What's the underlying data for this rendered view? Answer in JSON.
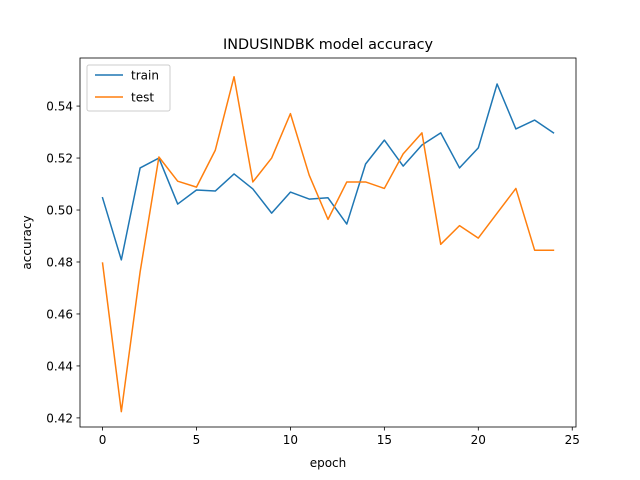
{
  "chart_data": {
    "type": "line",
    "title": "INDUSINDBK model accuracy",
    "xlabel": "epoch",
    "ylabel": "accuracy",
    "xlim": [
      -1.2,
      25.2
    ],
    "ylim": [
      0.4165,
      0.5585
    ],
    "xticks": [
      0,
      5,
      10,
      15,
      20,
      25
    ],
    "yticks": [
      0.42,
      0.44,
      0.46,
      0.48,
      0.5,
      0.52,
      0.54
    ],
    "ytick_labels": [
      "0.42",
      "0.44",
      "0.46",
      "0.48",
      "0.50",
      "0.52",
      "0.54"
    ],
    "x": [
      0,
      1,
      2,
      3,
      4,
      5,
      6,
      7,
      8,
      9,
      10,
      11,
      12,
      13,
      14,
      15,
      16,
      17,
      18,
      19,
      20,
      21,
      22,
      23,
      24
    ],
    "grid": false,
    "legend": "upper left",
    "series": [
      {
        "name": "train",
        "color": "#1f77b4",
        "values": [
          0.5047,
          0.4808,
          0.5162,
          0.52,
          0.5023,
          0.5077,
          0.5073,
          0.5139,
          0.5081,
          0.4988,
          0.5069,
          0.5042,
          0.5047,
          0.4946,
          0.5177,
          0.5269,
          0.5169,
          0.525,
          0.5297,
          0.5162,
          0.5239,
          0.5485,
          0.5312,
          0.5346,
          0.5297
        ]
      },
      {
        "name": "test",
        "color": "#ff7f0e",
        "values": [
          0.4796,
          0.4224,
          0.4762,
          0.5204,
          0.5111,
          0.5088,
          0.523,
          0.5513,
          0.5108,
          0.52,
          0.5371,
          0.5134,
          0.4964,
          0.5108,
          0.5108,
          0.5083,
          0.5216,
          0.5297,
          0.4868,
          0.494,
          0.4892,
          0.4988,
          0.5083,
          0.4845,
          0.4845
        ]
      }
    ]
  }
}
